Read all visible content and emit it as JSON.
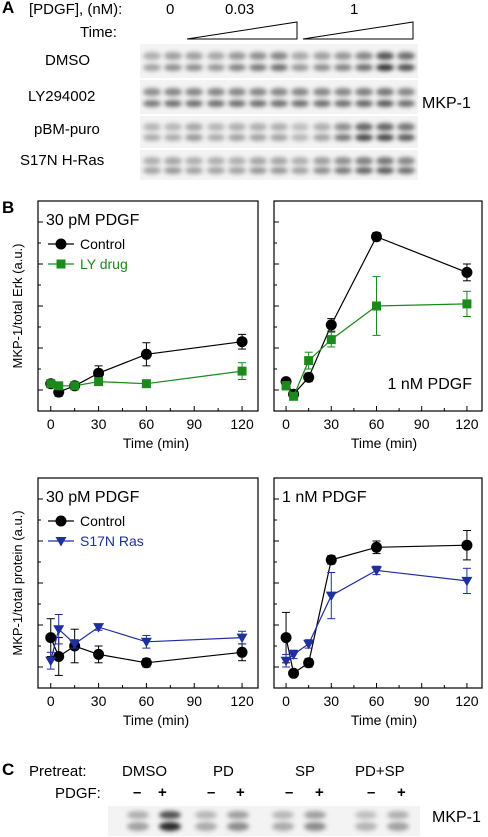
{
  "panelA": {
    "letter": "A",
    "pdgf_label": "[PDGF], (nM):",
    "time_label": "Time:",
    "dose_values": [
      "0",
      "0.03",
      "1"
    ],
    "rows": [
      "DMSO",
      "LY294002",
      "pBM-puro",
      "S17N H-Ras"
    ],
    "protein_label": "MKP-1"
  },
  "panelB": {
    "letter": "B"
  },
  "panelC": {
    "letter": "C",
    "pretreat_label": "Pretreat:",
    "pdgf_label": "PDGF:",
    "groups": [
      "DMSO",
      "PD",
      "SP",
      "PD+SP"
    ],
    "signs": [
      "–",
      "+",
      "–",
      "+",
      "–",
      "+",
      "–",
      "+"
    ],
    "protein_label": "MKP-1"
  },
  "chart_data": [
    {
      "type": "line",
      "title": "30 pM PDGF",
      "xlabel": "Time (min)",
      "ylabel": "MKP-1/total Erk (a.u.)",
      "x_ticks": [
        0,
        30,
        60,
        90,
        120
      ],
      "xlim": [
        -8,
        130
      ],
      "ylim": [
        0,
        10
      ],
      "series": [
        {
          "name": "Control",
          "color": "#000000",
          "marker": "circle",
          "x": [
            0,
            5,
            15,
            30,
            60,
            120
          ],
          "y": [
            1.3,
            0.9,
            1.2,
            1.8,
            2.7,
            3.3
          ],
          "err": [
            0.15,
            0.2,
            0.15,
            0.35,
            0.55,
            0.35
          ]
        },
        {
          "name": "LY drug",
          "color": "#1a8a1a",
          "marker": "square",
          "x": [
            0,
            5,
            15,
            30,
            60,
            120
          ],
          "y": [
            1.3,
            1.2,
            1.2,
            1.4,
            1.3,
            1.9
          ],
          "err": [
            0.15,
            0.1,
            0.1,
            0.15,
            0.1,
            0.4
          ]
        }
      ]
    },
    {
      "type": "line",
      "title": "1 nM PDGF",
      "xlabel": "Time (min)",
      "ylabel": "",
      "x_ticks": [
        0,
        30,
        60,
        90,
        120
      ],
      "xlim": [
        -8,
        130
      ],
      "ylim": [
        0,
        10
      ],
      "series": [
        {
          "name": "Control",
          "color": "#000000",
          "marker": "circle",
          "x": [
            0,
            5,
            15,
            30,
            60,
            120
          ],
          "y": [
            1.4,
            0.8,
            1.6,
            4.1,
            8.3,
            6.6
          ],
          "err": [
            0.15,
            0.15,
            0.2,
            0.3,
            0.2,
            0.4
          ]
        },
        {
          "name": "LY drug",
          "color": "#1a8a1a",
          "marker": "square",
          "x": [
            0,
            5,
            15,
            30,
            60,
            120
          ],
          "y": [
            1.2,
            0.7,
            2.4,
            3.4,
            5.0,
            5.1
          ],
          "err": [
            0.2,
            0.15,
            0.4,
            0.35,
            1.4,
            0.6
          ]
        }
      ]
    },
    {
      "type": "line",
      "title": "30 pM PDGF",
      "xlabel": "Time (min)",
      "ylabel": "MKP-1/total protein (a.u.)",
      "x_ticks": [
        0,
        30,
        60,
        90,
        120
      ],
      "xlim": [
        -8,
        130
      ],
      "ylim": [
        0,
        10
      ],
      "series": [
        {
          "name": "Control",
          "color": "#000000",
          "marker": "circle",
          "x": [
            0,
            5,
            15,
            30,
            60,
            120
          ],
          "y": [
            2.4,
            1.5,
            2.0,
            1.6,
            1.2,
            1.7
          ],
          "err": [
            0.9,
            0.9,
            0.8,
            0.4,
            0.2,
            0.4
          ]
        },
        {
          "name": "S17N Ras",
          "color": "#1e2f9e",
          "marker": "triangle-down",
          "x": [
            0,
            5,
            15,
            30,
            60,
            120
          ],
          "y": [
            1.3,
            2.8,
            2.1,
            2.9,
            2.2,
            2.4
          ],
          "err": [
            0.4,
            0.7,
            0.2,
            0.15,
            0.3,
            0.3
          ]
        }
      ]
    },
    {
      "type": "line",
      "title": "1 nM PDGF",
      "xlabel": "Time (min)",
      "ylabel": "",
      "x_ticks": [
        0,
        30,
        60,
        90,
        120
      ],
      "xlim": [
        -8,
        130
      ],
      "ylim": [
        0,
        10
      ],
      "series": [
        {
          "name": "Control",
          "color": "#000000",
          "marker": "circle",
          "x": [
            0,
            5,
            15,
            30,
            60,
            120
          ],
          "y": [
            2.4,
            0.7,
            1.2,
            6.1,
            6.7,
            6.8
          ],
          "err": [
            1.2,
            0.15,
            0.2,
            0.2,
            0.3,
            0.7
          ]
        },
        {
          "name": "S17N Ras",
          "color": "#1e2f9e",
          "marker": "triangle-down",
          "x": [
            0,
            5,
            15,
            30,
            60,
            120
          ],
          "y": [
            1.3,
            1.6,
            2.1,
            4.4,
            5.6,
            5.1
          ],
          "err": [
            0.3,
            0.2,
            0.2,
            1.1,
            0.2,
            0.6
          ]
        }
      ]
    }
  ]
}
